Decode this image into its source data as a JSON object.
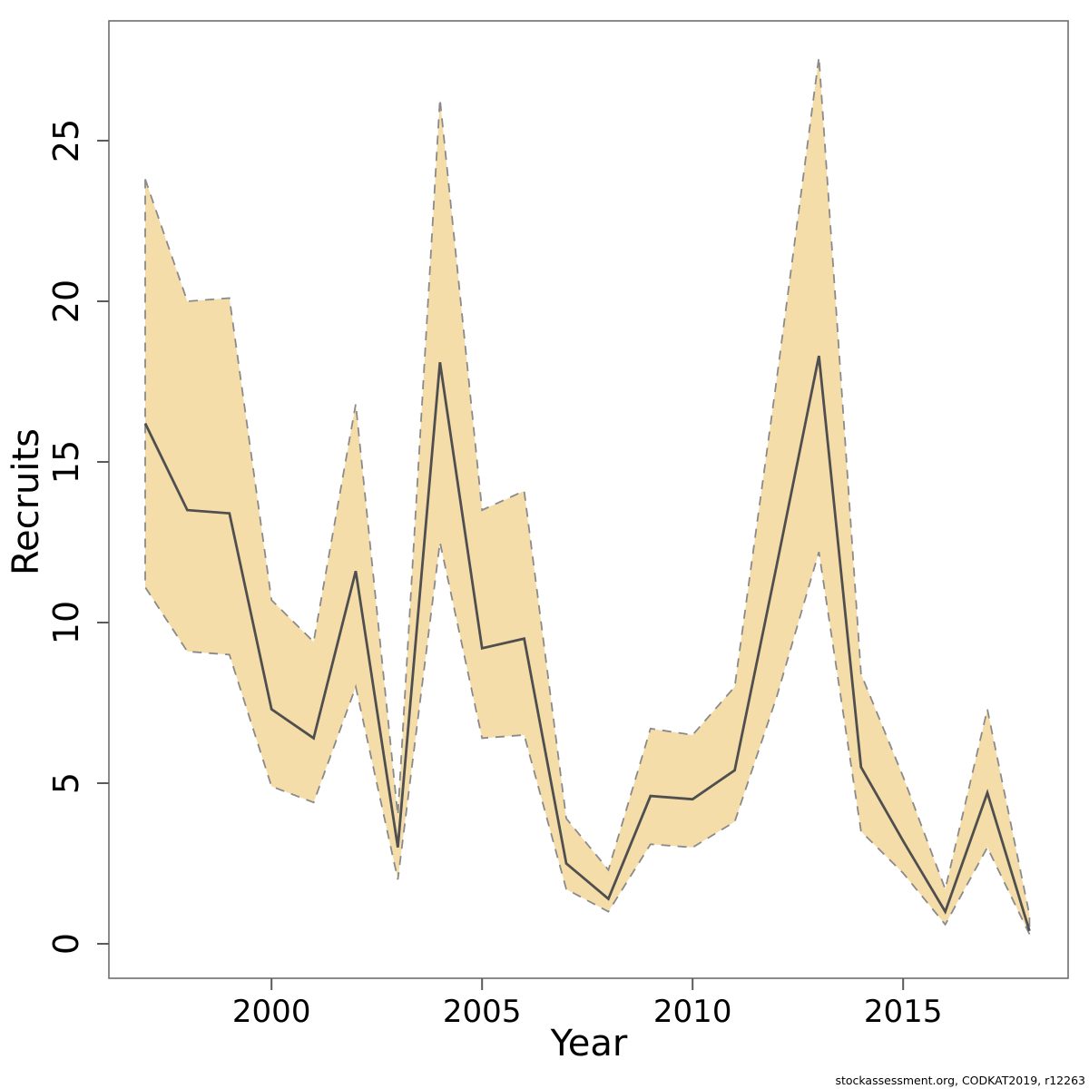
{
  "chart_data": {
    "type": "line",
    "title": "",
    "xlabel": "Year",
    "ylabel": "Recruits",
    "x_ticks": [
      2000,
      2005,
      2010,
      2015
    ],
    "y_ticks": [
      0,
      5,
      10,
      15,
      20,
      25
    ],
    "xlim": [
      1996.1,
      2018.9
    ],
    "ylim": [
      -1.1,
      28.7
    ],
    "grid": false,
    "legend_position": "none",
    "years": [
      1997,
      1998,
      1999,
      2000,
      2001,
      2002,
      2003,
      2004,
      2005,
      2006,
      2007,
      2008,
      2009,
      2010,
      2011,
      2012,
      2013,
      2014,
      2015,
      2016,
      2017,
      2018
    ],
    "series": [
      {
        "name": "median_recruits",
        "style": "solid",
        "values": [
          16.2,
          13.5,
          13.4,
          7.3,
          6.4,
          11.6,
          3.0,
          18.1,
          9.2,
          9.5,
          2.5,
          1.4,
          4.6,
          4.5,
          5.4,
          11.8,
          18.3,
          5.5,
          3.2,
          1.0,
          4.7,
          0.4
        ]
      },
      {
        "name": "ci_lower",
        "style": "dashed",
        "values": [
          11.1,
          9.1,
          9.0,
          4.9,
          4.4,
          8.0,
          2.0,
          12.5,
          6.4,
          6.5,
          1.7,
          1.0,
          3.1,
          3.0,
          3.8,
          7.7,
          12.2,
          3.5,
          2.2,
          0.6,
          3.0,
          0.3
        ]
      },
      {
        "name": "ci_upper",
        "style": "dashed",
        "values": [
          23.8,
          20.0,
          20.1,
          10.7,
          9.4,
          16.8,
          4.0,
          26.3,
          13.5,
          14.1,
          3.9,
          2.3,
          6.7,
          6.5,
          8.0,
          17.6,
          27.6,
          8.4,
          5.2,
          1.7,
          7.3,
          0.9
        ]
      }
    ],
    "colors": {
      "band_fill": "#F5DDA9",
      "band_border": "#8A8A8A",
      "median_line": "#4F4F4F",
      "axis": "#6E6E6E",
      "tick": "#5A5A5A",
      "text": "#000000",
      "footer_text": "#1A1A1A"
    }
  },
  "footer": {
    "text": "stockassessment.org, CODKAT2019, r12263"
  }
}
